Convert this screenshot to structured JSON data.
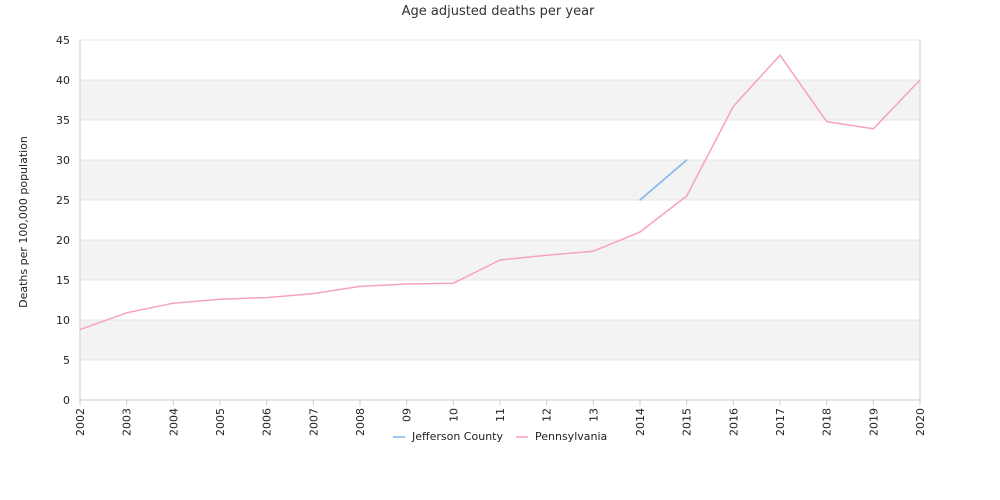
{
  "chart_data": {
    "type": "line",
    "title": "Age adjusted deaths per year",
    "xlabel": "",
    "ylabel": "Deaths per 100,000 population",
    "x": [
      "2002",
      "2003",
      "2004",
      "2005",
      "2006",
      "2007",
      "2008",
      "09",
      "10",
      "11",
      "12",
      "13",
      "2014",
      "2015",
      "2016",
      "2017",
      "2018",
      "2019",
      "2020"
    ],
    "ylim": [
      0,
      45
    ],
    "yticks": [
      "0",
      "5",
      "10",
      "15",
      "20",
      "25",
      "30",
      "35",
      "40",
      "45"
    ],
    "grid": "horizontal bands",
    "legend_position": "bottom",
    "series": [
      {
        "name": "Jefferson County",
        "color": "#7cb5ec",
        "values": [
          null,
          null,
          null,
          null,
          null,
          null,
          null,
          null,
          null,
          null,
          null,
          null,
          25.0,
          30.0,
          null,
          null,
          null,
          null,
          null
        ]
      },
      {
        "name": "Pennsylvania",
        "color": "#f7a1c4",
        "values": [
          8.8,
          10.9,
          12.1,
          12.6,
          12.8,
          13.3,
          14.2,
          14.5,
          14.6,
          17.5,
          18.1,
          18.6,
          21.0,
          25.5,
          36.7,
          43.1,
          34.8,
          33.9,
          40.0
        ]
      }
    ],
    "colors": {
      "band": "#f3f3f3",
      "gridline": "#e6e6e6",
      "axis": "#cccccc"
    }
  }
}
